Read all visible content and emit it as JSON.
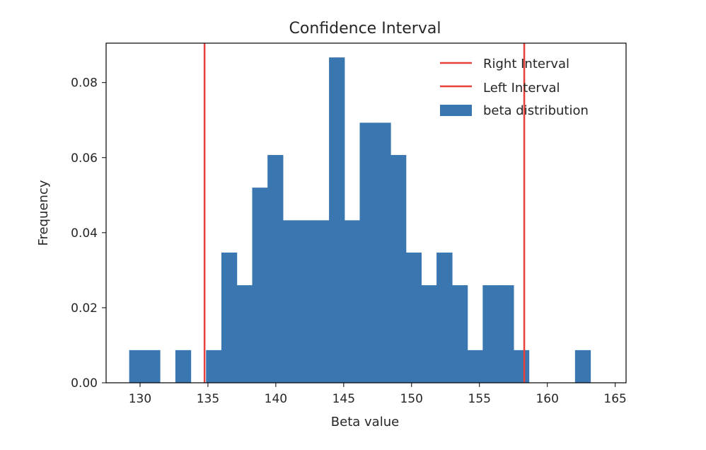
{
  "chart_data": {
    "type": "bar",
    "subtype": "histogram",
    "title": "Confidence Interval",
    "xlabel": "Beta value",
    "ylabel": "Frequency",
    "xlim": [
      127.5,
      165.8
    ],
    "ylim": [
      0,
      0.0905
    ],
    "xticks": [
      130,
      135,
      140,
      145,
      150,
      155,
      160,
      165
    ],
    "yticks": [
      0.0,
      0.02,
      0.04,
      0.06,
      0.08
    ],
    "ytick_labels": [
      "0.00",
      "0.02",
      "0.04",
      "0.06",
      "0.08"
    ],
    "grid": false,
    "legend_position": "top-right",
    "bar_color": "#3a76b0",
    "line_color": "#e8403a",
    "bins": [
      {
        "x0": 129.2,
        "x1": 130.33,
        "y": 0.0087
      },
      {
        "x0": 130.33,
        "x1": 131.46,
        "y": 0.0087
      },
      {
        "x0": 131.46,
        "x1": 132.6,
        "y": 0
      },
      {
        "x0": 132.6,
        "x1": 133.73,
        "y": 0.0087
      },
      {
        "x0": 133.73,
        "x1": 134.86,
        "y": 0
      },
      {
        "x0": 134.86,
        "x1": 135.99,
        "y": 0.0087
      },
      {
        "x0": 135.99,
        "x1": 137.12,
        "y": 0.0347
      },
      {
        "x0": 137.12,
        "x1": 138.26,
        "y": 0.026
      },
      {
        "x0": 138.26,
        "x1": 139.39,
        "y": 0.052
      },
      {
        "x0": 139.39,
        "x1": 140.52,
        "y": 0.0607
      },
      {
        "x0": 140.52,
        "x1": 141.65,
        "y": 0.0433
      },
      {
        "x0": 141.65,
        "x1": 142.79,
        "y": 0.0433
      },
      {
        "x0": 142.79,
        "x1": 143.92,
        "y": 0.0433
      },
      {
        "x0": 143.92,
        "x1": 145.05,
        "y": 0.0867
      },
      {
        "x0": 145.05,
        "x1": 146.18,
        "y": 0.0433
      },
      {
        "x0": 146.18,
        "x1": 147.32,
        "y": 0.0693
      },
      {
        "x0": 147.32,
        "x1": 148.45,
        "y": 0.0693
      },
      {
        "x0": 148.45,
        "x1": 149.58,
        "y": 0.0607
      },
      {
        "x0": 149.58,
        "x1": 150.71,
        "y": 0.0347
      },
      {
        "x0": 150.71,
        "x1": 151.84,
        "y": 0.026
      },
      {
        "x0": 151.84,
        "x1": 152.98,
        "y": 0.0347
      },
      {
        "x0": 152.98,
        "x1": 154.11,
        "y": 0.026
      },
      {
        "x0": 154.11,
        "x1": 155.24,
        "y": 0.0087
      },
      {
        "x0": 155.24,
        "x1": 156.37,
        "y": 0.026
      },
      {
        "x0": 156.37,
        "x1": 157.51,
        "y": 0.026
      },
      {
        "x0": 157.51,
        "x1": 158.64,
        "y": 0.0087
      },
      {
        "x0": 158.64,
        "x1": 159.77,
        "y": 0
      },
      {
        "x0": 159.77,
        "x1": 160.9,
        "y": 0
      },
      {
        "x0": 160.9,
        "x1": 162.04,
        "y": 0
      },
      {
        "x0": 162.04,
        "x1": 163.17,
        "y": 0.0087
      }
    ],
    "vlines": [
      {
        "name": "Right Interval",
        "x": 158.3
      },
      {
        "name": "Left Interval",
        "x": 134.75
      }
    ],
    "legend": [
      "Right Interval",
      "Left Interval",
      "beta distribution"
    ]
  }
}
